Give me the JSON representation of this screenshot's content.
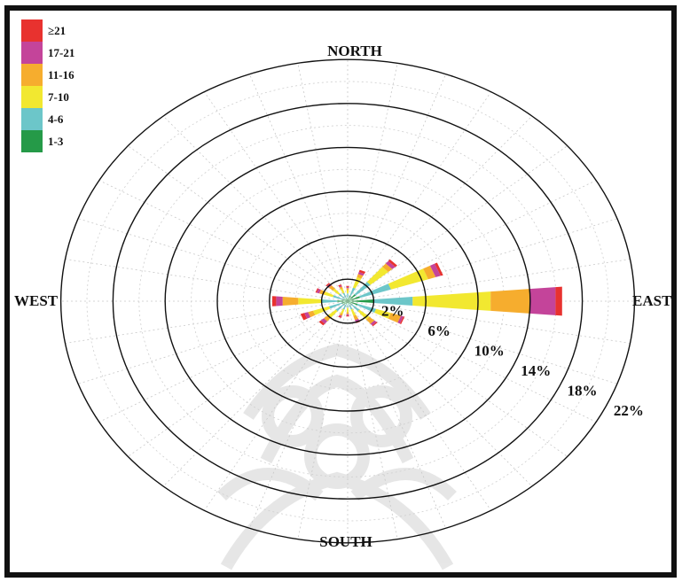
{
  "chart_data": {
    "type": "wind-rose",
    "title": "",
    "directions": {
      "north": "NORTH",
      "south": "SOUTH",
      "east": "EAST",
      "west": "WEST"
    },
    "radial_axis": {
      "unit": "%",
      "ticks": [
        2,
        6,
        10,
        14,
        18,
        22
      ],
      "tick_labels": [
        "2%",
        "6%",
        "10%",
        "14%",
        "18%",
        "22%"
      ],
      "max": 22
    },
    "speed_bins": [
      {
        "label": "≥21",
        "color": "#e8322f"
      },
      {
        "label": "17-21",
        "color": "#c4449a"
      },
      {
        "label": "11-16",
        "color": "#f6ad2e"
      },
      {
        "label": "7-10",
        "color": "#f2e830"
      },
      {
        "label": "4-6",
        "color": "#6cc6c9"
      },
      {
        "label": "1-3",
        "color": "#259a48"
      }
    ],
    "legend_position": "top-left",
    "grid": true,
    "series_order_inner_to_outer": [
      "1-3",
      "4-6",
      "7-10",
      "11-16",
      "17-21",
      "≥21"
    ],
    "petals": [
      {
        "direction_deg": 90,
        "values": [
          2,
          3,
          6,
          3,
          2,
          0.5
        ]
      },
      {
        "direction_deg": 67.5,
        "values": [
          1,
          2.5,
          3,
          0.6,
          0.4,
          0.2
        ]
      },
      {
        "direction_deg": 45,
        "values": [
          0.8,
          1.5,
          1.8,
          0.4,
          0.3,
          0.2
        ]
      },
      {
        "direction_deg": 22.5,
        "values": [
          0.5,
          0.8,
          1,
          0.3,
          0.2,
          0.2
        ]
      },
      {
        "direction_deg": 0,
        "values": [
          0.3,
          0.4,
          0.3,
          0.2,
          0.1,
          0.1
        ]
      },
      {
        "direction_deg": 337.5,
        "values": [
          0.3,
          0.5,
          0.4,
          0.2,
          0.1,
          0.1
        ]
      },
      {
        "direction_deg": 315,
        "values": [
          0.3,
          0.6,
          0.6,
          0.4,
          0.2,
          0.1
        ]
      },
      {
        "direction_deg": 292.5,
        "values": [
          0.4,
          0.8,
          0.7,
          0.4,
          0.2,
          0.1
        ]
      },
      {
        "direction_deg": 270,
        "values": [
          0.8,
          1.2,
          1.8,
          1.2,
          0.5,
          0.3
        ]
      },
      {
        "direction_deg": 247.5,
        "values": [
          0.5,
          1,
          1.3,
          0.4,
          0.3,
          0.3
        ]
      },
      {
        "direction_deg": 225,
        "values": [
          0.4,
          0.8,
          0.8,
          0.4,
          0.3,
          0.2
        ]
      },
      {
        "direction_deg": 202.5,
        "values": [
          0.3,
          0.5,
          0.4,
          0.2,
          0.1,
          0.1
        ]
      },
      {
        "direction_deg": 180,
        "values": [
          0.2,
          0.4,
          0.4,
          0.2,
          0.1,
          0.1
        ]
      },
      {
        "direction_deg": 157.5,
        "values": [
          0.3,
          0.5,
          0.6,
          0.4,
          0.2,
          0.1
        ]
      },
      {
        "direction_deg": 135,
        "values": [
          0.4,
          0.8,
          1,
          0.5,
          0.2,
          0.1
        ]
      },
      {
        "direction_deg": 112.5,
        "values": [
          0.8,
          1.5,
          1.2,
          0.8,
          0.2,
          0.1
        ]
      }
    ]
  }
}
